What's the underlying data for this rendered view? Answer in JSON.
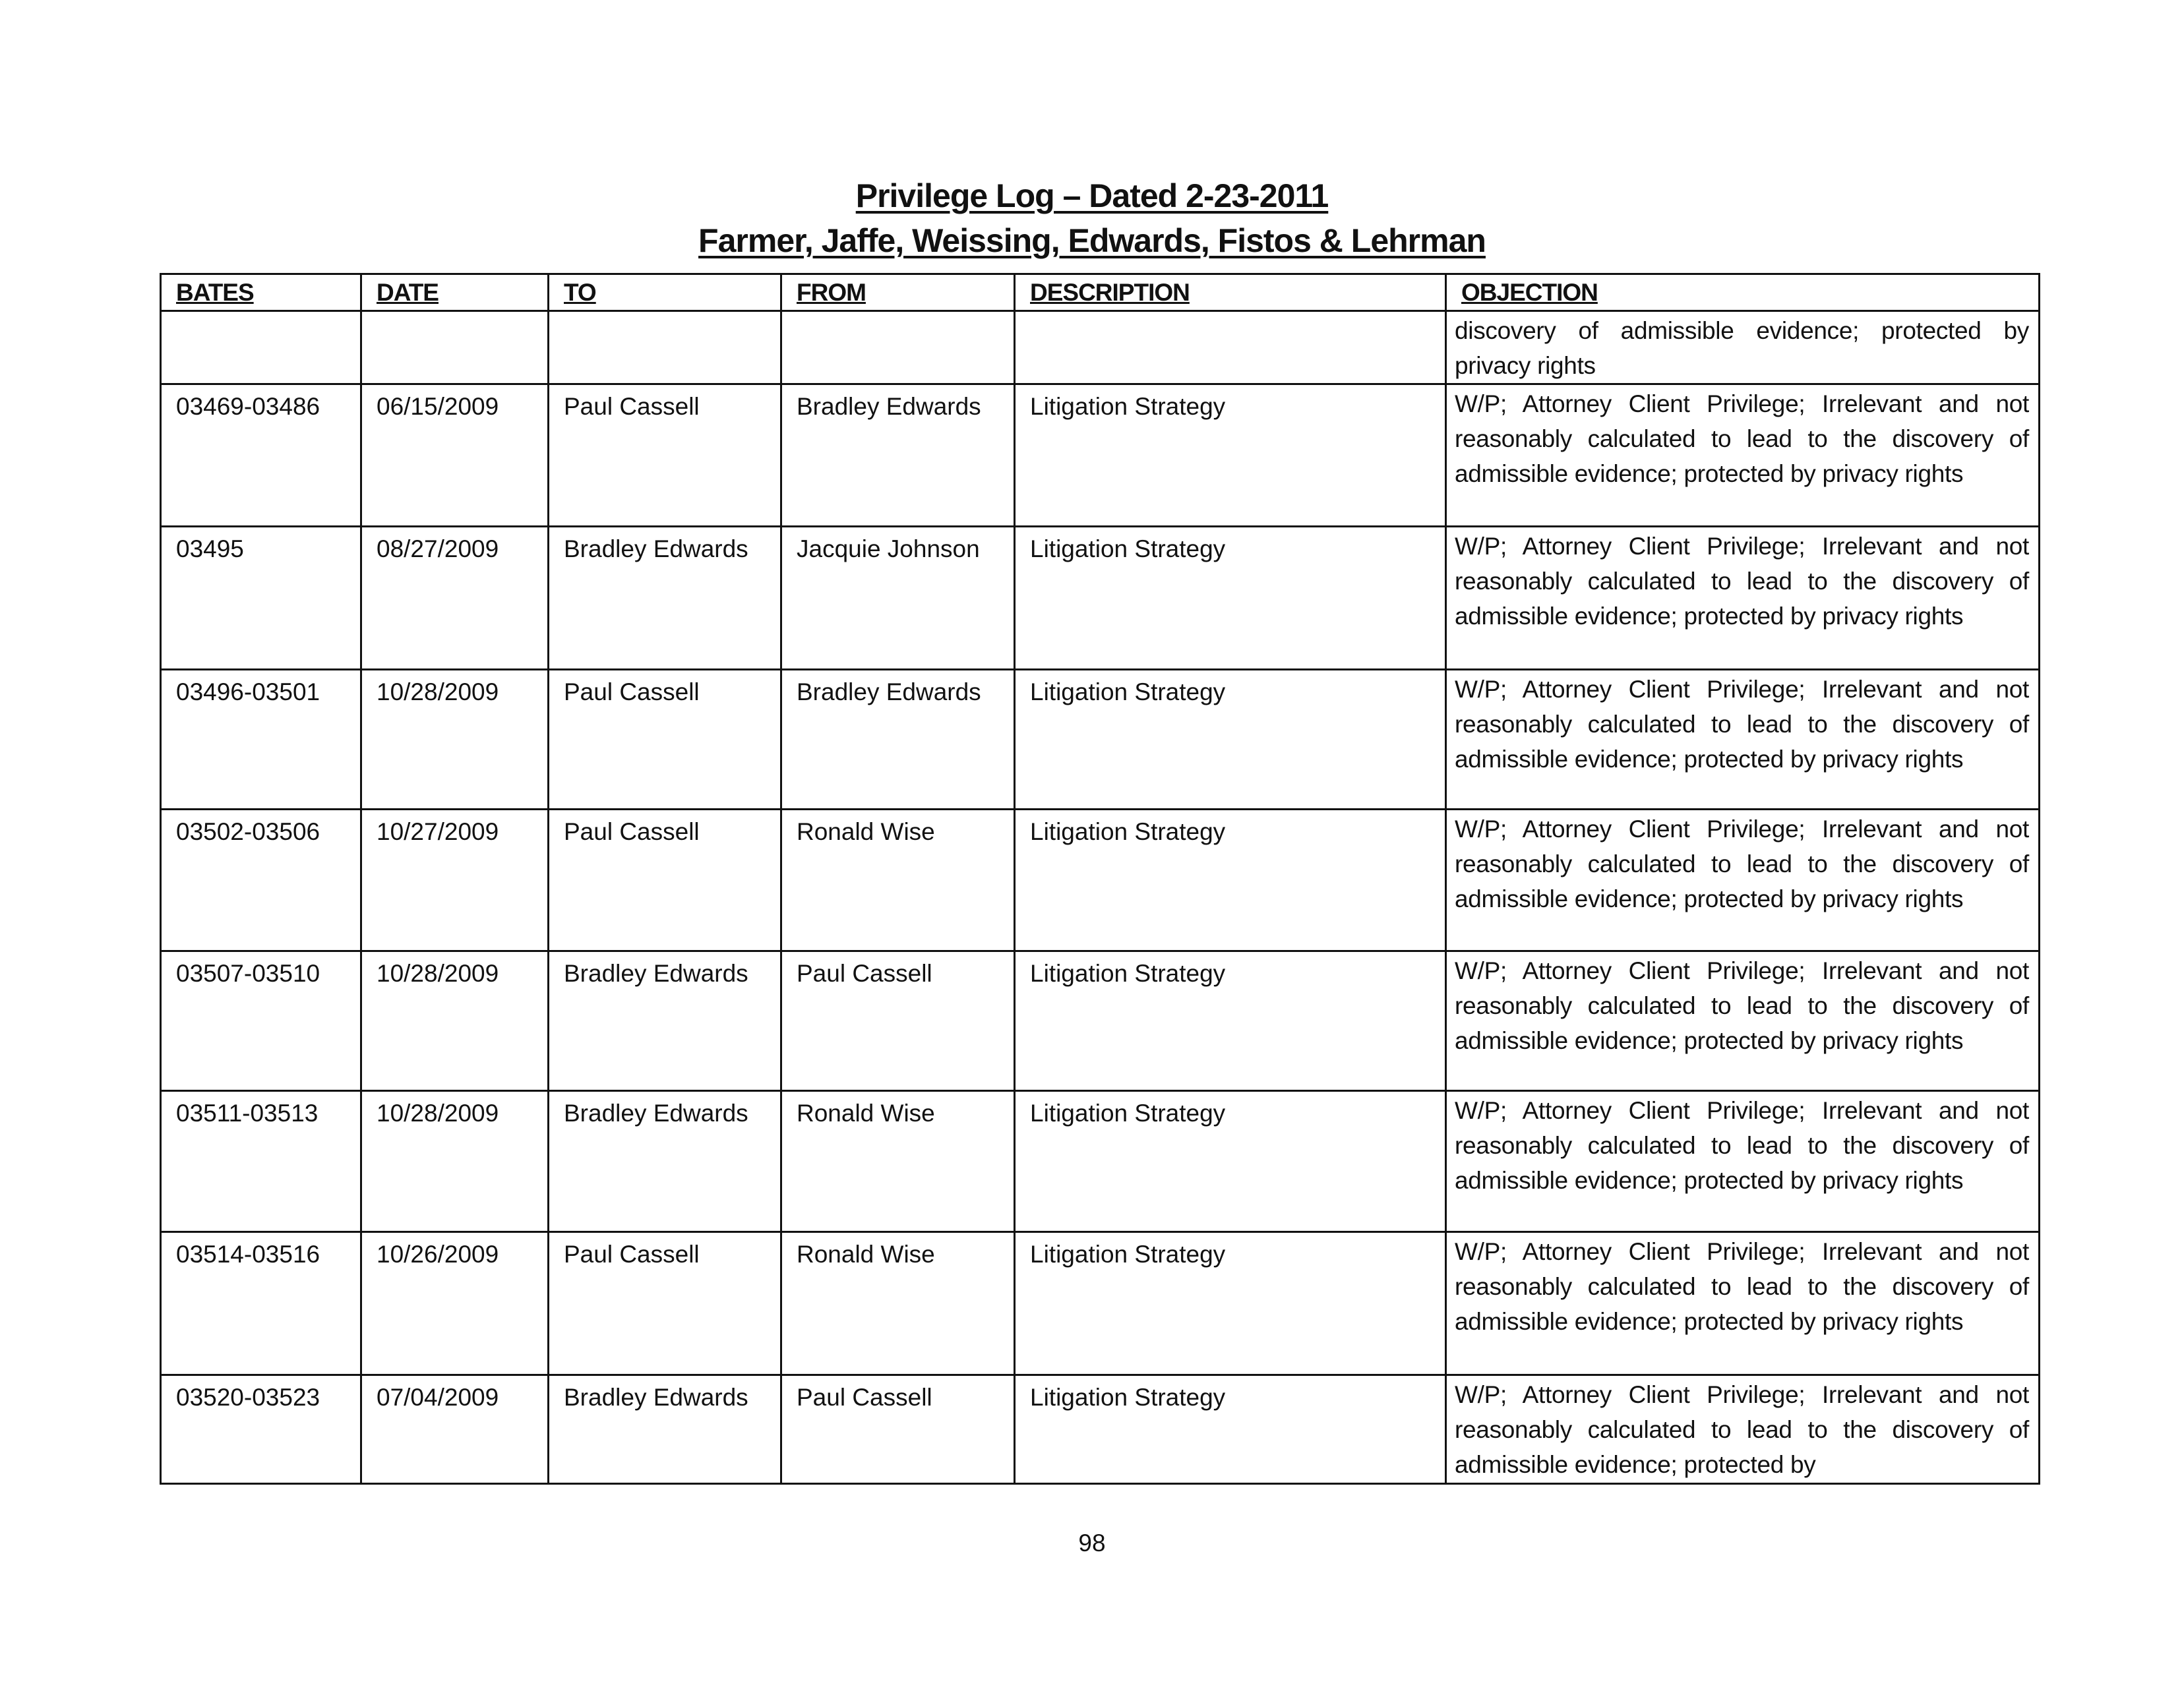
{
  "document": {
    "title": "Privilege Log – Dated 2-23-2011",
    "subtitle": "Farmer, Jaffe, Weissing, Edwards, Fistos & Lehrman",
    "page_number": "98"
  },
  "table": {
    "headers": [
      "BATES",
      "DATE",
      "TO",
      "FROM",
      "DESCRIPTION",
      "OBJECTION"
    ],
    "rows": [
      [
        "",
        "",
        "",
        "",
        "",
        "discovery of admissible evidence; protected by privacy rights"
      ],
      [
        "03469-03486",
        "06/15/2009",
        "Paul Cassell",
        "Bradley Edwards",
        "Litigation Strategy",
        "W/P; Attorney Client Privilege; Irrelevant and not reasonably calculated to lead to the discovery of admissible evidence; protected by privacy rights"
      ],
      [
        "03495",
        "08/27/2009",
        "Bradley Edwards",
        "Jacquie Johnson",
        "Litigation Strategy",
        "W/P; Attorney Client Privilege; Irrelevant and not reasonably calculated to lead to the discovery of admissible evidence; protected by privacy rights"
      ],
      [
        "03496-03501",
        "10/28/2009",
        "Paul Cassell",
        "Bradley Edwards",
        "Litigation Strategy",
        "W/P; Attorney Client Privilege; Irrelevant and not reasonably calculated to lead to the discovery of admissible evidence; protected by privacy rights"
      ],
      [
        "03502-03506",
        "10/27/2009",
        "Paul Cassell",
        "Ronald Wise",
        "Litigation Strategy",
        "W/P; Attorney Client Privilege; Irrelevant and not reasonably calculated to lead to the discovery of admissible evidence; protected by privacy rights"
      ],
      [
        "03507-03510",
        "10/28/2009",
        "Bradley Edwards",
        "Paul Cassell",
        "Litigation Strategy",
        "W/P; Attorney Client Privilege; Irrelevant and not reasonably calculated to lead to the discovery of admissible evidence; protected by privacy rights"
      ],
      [
        "03511-03513",
        "10/28/2009",
        "Bradley Edwards",
        "Ronald Wise",
        "Litigation Strategy",
        "W/P; Attorney Client Privilege; Irrelevant and not reasonably calculated to lead to the discovery of admissible evidence; protected by privacy rights"
      ],
      [
        "03514-03516",
        "10/26/2009",
        "Paul Cassell",
        "Ronald Wise",
        "Litigation Strategy",
        "W/P; Attorney Client Privilege; Irrelevant and not reasonably calculated to lead to the discovery of admissible evidence; protected by privacy rights"
      ],
      [
        "03520-03523",
        "07/04/2009",
        "Bradley Edwards",
        "Paul Cassell",
        "Litigation Strategy",
        "W/P; Attorney Client Privilege; Irrelevant and not reasonably calculated to lead to the discovery of admissible evidence; protected by"
      ]
    ]
  }
}
